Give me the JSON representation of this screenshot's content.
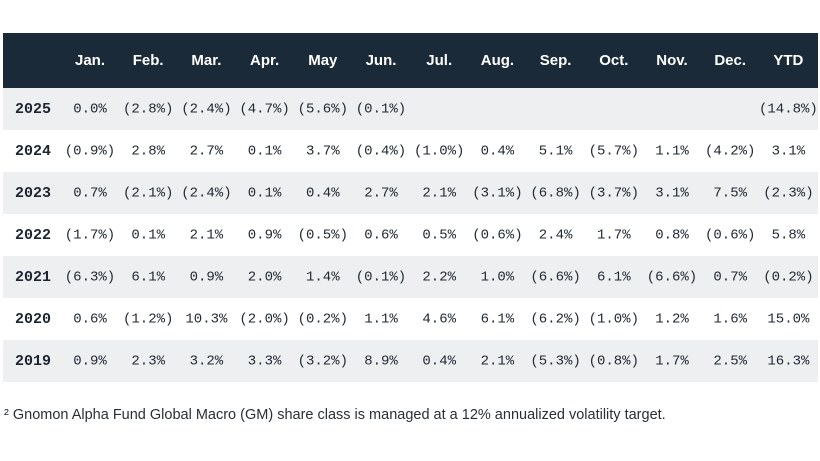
{
  "table": {
    "header": [
      "Jan.",
      "Feb.",
      "Mar.",
      "Apr.",
      "May",
      "Jun.",
      "Jul.",
      "Aug.",
      "Sep.",
      "Oct.",
      "Nov.",
      "Dec.",
      "YTD"
    ],
    "rows": [
      {
        "year": "2025",
        "cells": [
          "0.0%",
          "(2.8%)",
          "(2.4%)",
          "(4.7%)",
          "(5.6%)",
          "(0.1%)",
          null,
          null,
          null,
          null,
          null,
          null,
          "(14.8%)"
        ]
      },
      {
        "year": "2024",
        "cells": [
          "(0.9%)",
          "2.8%",
          "2.7%",
          "0.1%",
          "3.7%",
          "(0.4%)",
          "(1.0%)",
          "0.4%",
          "5.1%",
          "(5.7%)",
          "1.1%",
          "(4.2%)",
          "3.1%"
        ]
      },
      {
        "year": "2023",
        "cells": [
          "0.7%",
          "(2.1%)",
          "(2.4%)",
          "0.1%",
          "0.4%",
          "2.7%",
          "2.1%",
          "(3.1%)",
          "(6.8%)",
          "(3.7%)",
          "3.1%",
          "7.5%",
          "(2.3%)"
        ]
      },
      {
        "year": "2022",
        "cells": [
          "(1.7%)",
          "0.1%",
          "2.1%",
          "0.9%",
          "(0.5%)",
          "0.6%",
          "0.5%",
          "(0.6%)",
          "2.4%",
          "1.7%",
          "0.8%",
          "(0.6%)",
          "5.8%"
        ]
      },
      {
        "year": "2021",
        "cells": [
          "(6.3%)",
          "6.1%",
          "0.9%",
          "2.0%",
          "1.4%",
          "(0.1%)",
          "2.2%",
          "1.0%",
          "(6.6%)",
          "6.1%",
          "(6.6%)",
          "0.7%",
          "(0.2%)"
        ]
      },
      {
        "year": "2020",
        "cells": [
          "0.6%",
          "(1.2%)",
          "10.3%",
          "(2.0%)",
          "(0.2%)",
          "1.1%",
          "4.6%",
          "6.1%",
          "(6.2%)",
          "(1.0%)",
          "1.2%",
          "1.6%",
          "15.0%"
        ]
      },
      {
        "year": "2019",
        "cells": [
          "0.9%",
          "2.3%",
          "3.2%",
          "3.3%",
          "(3.2%)",
          "8.9%",
          "0.4%",
          "2.1%",
          "(5.3%)",
          "(0.8%)",
          "1.7%",
          "2.5%",
          "16.3%"
        ]
      }
    ]
  },
  "footnote": "² Gnomon Alpha Fund Global Macro (GM) share class is managed at a 12% annualized volatility target."
}
